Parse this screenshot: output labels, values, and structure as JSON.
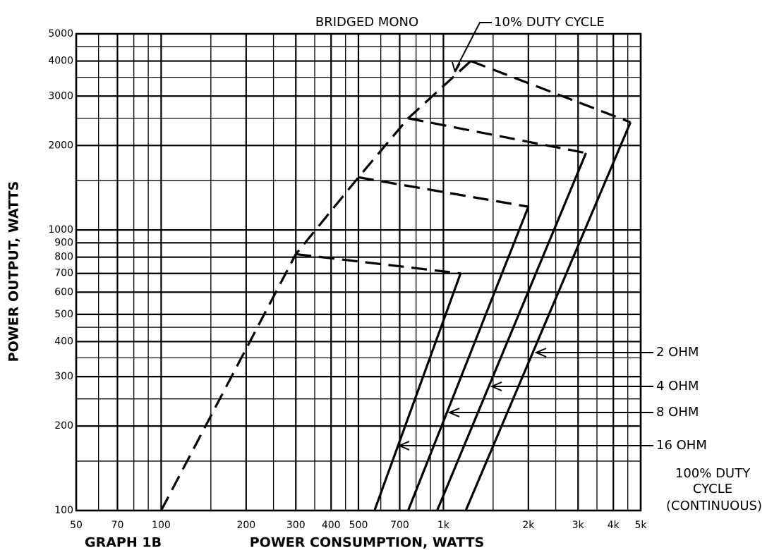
{
  "chart_data": {
    "type": "line",
    "title": "BRIDGED MONO",
    "annotation": "10% DUTY CYCLE",
    "continuous_note": [
      "100% DUTY",
      "CYCLE",
      "(CONTINUOUS)"
    ],
    "graph_label": "GRAPH 1B",
    "x_label": "POWER CONSUMPTION, WATTS",
    "y_label": "POWER OUTPUT, WATTS",
    "xlog": true,
    "ylog": true,
    "grid": true,
    "color": "#000000",
    "xlim": [
      50,
      5000
    ],
    "ylim": [
      100,
      5000
    ],
    "xticks": [
      50,
      70,
      100,
      200,
      300,
      400,
      500,
      700,
      {
        "value": 1000,
        "label": "1k"
      },
      {
        "value": 2000,
        "label": "2k"
      },
      {
        "value": 3000,
        "label": "3k"
      },
      {
        "value": 4000,
        "label": "4k"
      },
      {
        "value": 5000,
        "label": "5k"
      }
    ],
    "xminor": [
      60,
      80,
      90,
      150,
      250,
      350,
      450,
      600,
      800,
      900,
      1500,
      2500,
      3500,
      4500
    ],
    "yticks": [
      100,
      200,
      300,
      400,
      500,
      600,
      700,
      800,
      900,
      1000,
      2000,
      3000,
      4000,
      5000
    ],
    "yminor": [
      150,
      250,
      350,
      450,
      1500,
      2500,
      3500,
      4500
    ],
    "series": [
      {
        "x": [
          100,
          300,
          500,
          750,
          1250
        ],
        "values": [
          100,
          820,
          1540,
          2500,
          4000
        ],
        "dashed": true
      },
      {
        "x": [
          300,
          1150
        ],
        "values": [
          820,
          700
        ],
        "dashed": true
      },
      {
        "x": [
          500,
          2000
        ],
        "values": [
          1540,
          1210
        ],
        "dashed": true
      },
      {
        "x": [
          750,
          3200
        ],
        "values": [
          2500,
          1880
        ],
        "dashed": true
      },
      {
        "x": [
          1250,
          4600
        ],
        "values": [
          4000,
          2420
        ],
        "dashed": true
      },
      {
        "name": "16 OHM",
        "x": [
          1150,
          570
        ],
        "values": [
          700,
          100
        ],
        "dashed": false
      },
      {
        "name": "8 OHM",
        "x": [
          2000,
          750
        ],
        "values": [
          1210,
          100
        ],
        "dashed": false
      },
      {
        "name": "4 OHM",
        "x": [
          3200,
          950
        ],
        "values": [
          1880,
          100
        ],
        "dashed": false
      },
      {
        "name": "2 OHM",
        "x": [
          4600,
          1200
        ],
        "values": [
          2420,
          100
        ],
        "dashed": false
      }
    ]
  }
}
